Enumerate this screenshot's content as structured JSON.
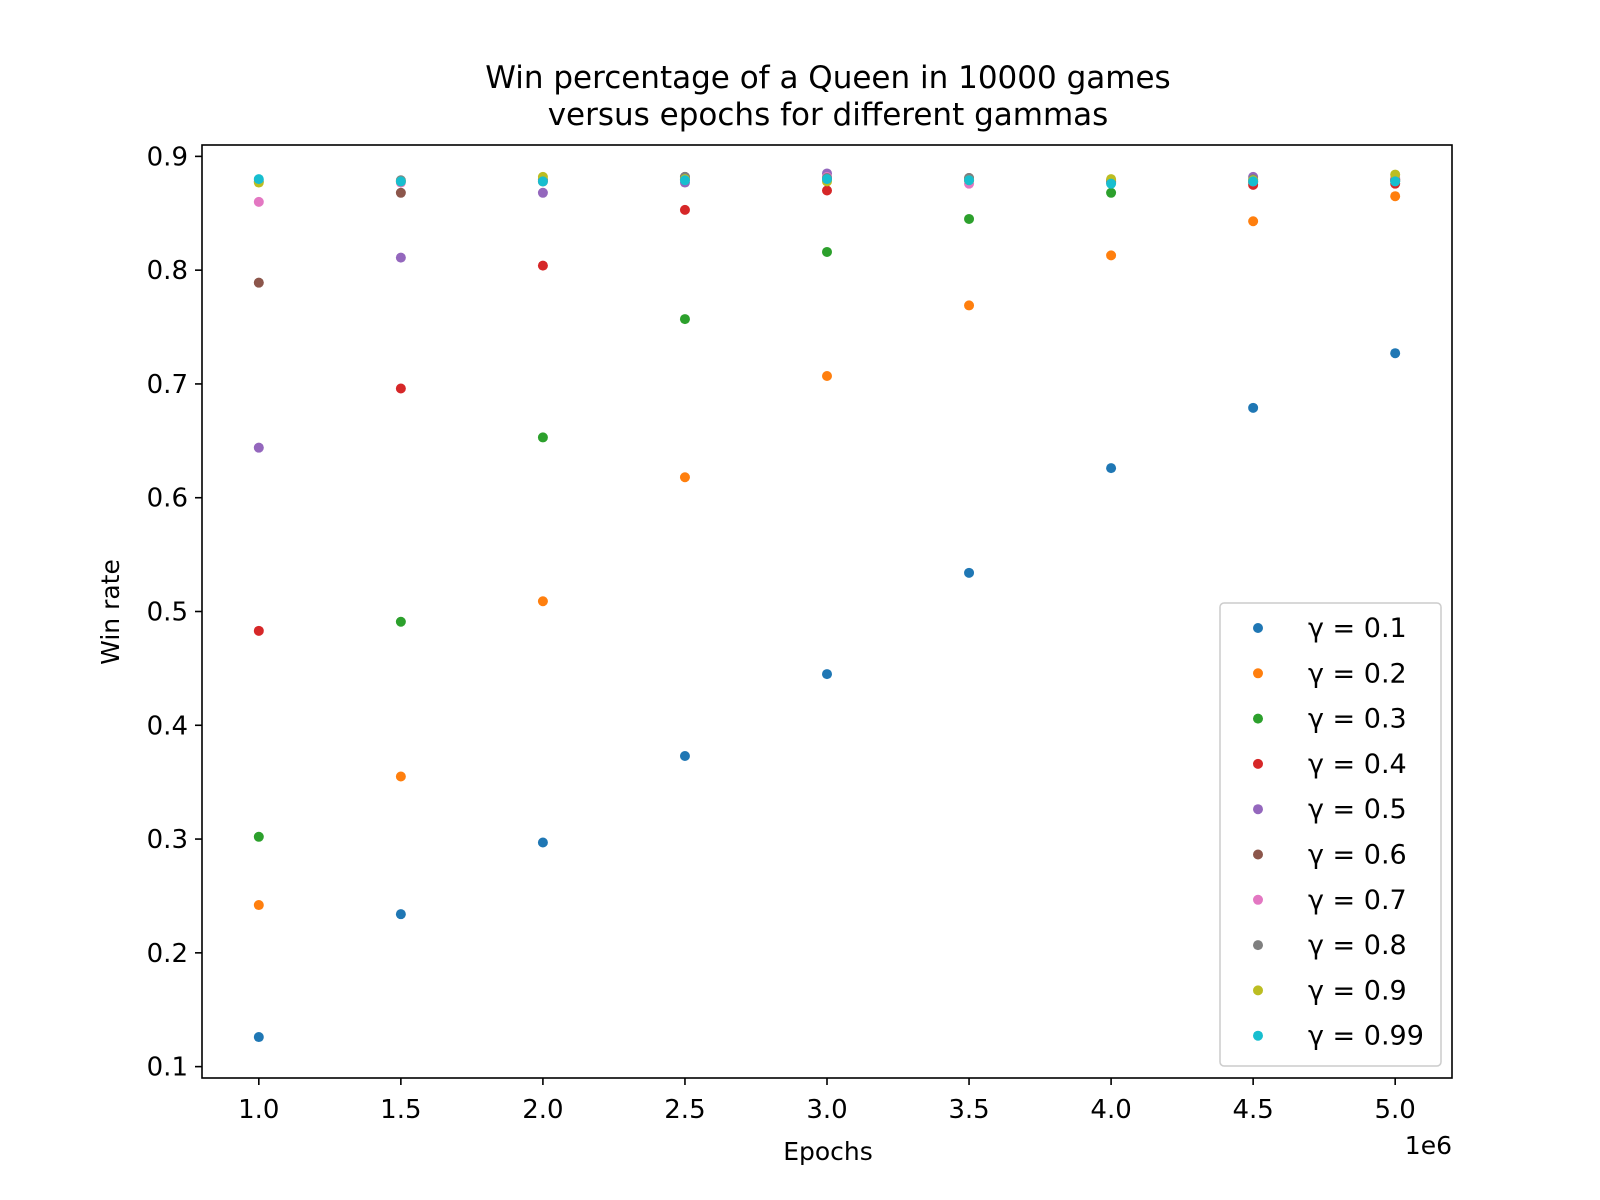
{
  "chart_data": {
    "type": "scatter",
    "title": [
      "Win percentage of a Queen in 10000 games",
      "versus epochs for different gammas"
    ],
    "xlabel": "Epochs",
    "ylabel": "Win rate",
    "x_offset_label": "1e6",
    "x": [
      1.0,
      1.5,
      2.0,
      2.5,
      3.0,
      3.5,
      4.0,
      4.5,
      5.0
    ],
    "x_ticks": [
      "1.0",
      "1.5",
      "2.0",
      "2.5",
      "3.0",
      "3.5",
      "4.0",
      "4.5",
      "5.0"
    ],
    "y_ticks": [
      "0.1",
      "0.2",
      "0.3",
      "0.4",
      "0.5",
      "0.6",
      "0.7",
      "0.8",
      "0.9"
    ],
    "xlim": [
      0.8,
      5.2
    ],
    "ylim": [
      0.09,
      0.91
    ],
    "grid": false,
    "legend_position": "lower-right",
    "series": [
      {
        "name": "γ = 0.1",
        "color": "#1f77b4",
        "values": [
          0.126,
          0.234,
          0.297,
          0.373,
          0.445,
          0.534,
          0.626,
          0.679,
          0.727
        ]
      },
      {
        "name": "γ = 0.2",
        "color": "#ff7f0e",
        "values": [
          0.242,
          0.355,
          0.509,
          0.618,
          0.707,
          0.769,
          0.813,
          0.843,
          0.865
        ]
      },
      {
        "name": "γ = 0.3",
        "color": "#2ca02c",
        "values": [
          0.302,
          0.491,
          0.653,
          0.757,
          0.816,
          0.845,
          0.868,
          0.877,
          0.878
        ]
      },
      {
        "name": "γ = 0.4",
        "color": "#d62728",
        "values": [
          0.483,
          0.696,
          0.804,
          0.853,
          0.87,
          0.879,
          0.878,
          0.875,
          0.876
        ]
      },
      {
        "name": "γ = 0.5",
        "color": "#9467bd",
        "values": [
          0.644,
          0.811,
          0.868,
          0.877,
          0.885,
          0.88,
          0.879,
          0.882,
          0.879
        ]
      },
      {
        "name": "γ = 0.6",
        "color": "#8c564b",
        "values": [
          0.789,
          0.868,
          0.878,
          0.882,
          0.88,
          0.881,
          0.877,
          0.878,
          0.88
        ]
      },
      {
        "name": "γ = 0.7",
        "color": "#e377c2",
        "values": [
          0.86,
          0.877,
          0.879,
          0.88,
          0.882,
          0.876,
          0.877,
          0.878,
          0.881
        ]
      },
      {
        "name": "γ = 0.8",
        "color": "#7f7f7f",
        "values": [
          0.878,
          0.879,
          0.88,
          0.882,
          0.881,
          0.881,
          0.878,
          0.88,
          0.879
        ]
      },
      {
        "name": "γ = 0.9",
        "color": "#bcbd22",
        "values": [
          0.877,
          0.878,
          0.882,
          0.88,
          0.878,
          0.879,
          0.88,
          0.879,
          0.884
        ]
      },
      {
        "name": "γ = 0.99",
        "color": "#17becf",
        "values": [
          0.88,
          0.878,
          0.878,
          0.879,
          0.88,
          0.879,
          0.876,
          0.878,
          0.878
        ]
      }
    ]
  }
}
